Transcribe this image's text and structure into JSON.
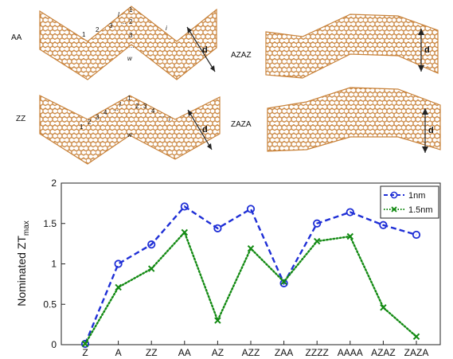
{
  "panels": [
    {
      "label": "AA"
    },
    {
      "label": "AZAZ"
    },
    {
      "label": "ZZ"
    },
    {
      "label": "ZAZA"
    }
  ],
  "annotations": {
    "numbers_aa": [
      "1",
      "2",
      "3",
      "...",
      "1",
      "2",
      "3",
      "...",
      "l",
      "i",
      "w"
    ],
    "numbers_zz": [
      "1",
      "2",
      "3",
      "4",
      "...",
      "1",
      "2",
      "3",
      "4",
      "...",
      "l",
      "i",
      "w"
    ],
    "width_marker": "d"
  },
  "colors": {
    "lattice": "#c8823a",
    "series_1nm": "#1f2fd6",
    "series_15nm": "#138a13"
  },
  "chart_data": {
    "type": "line",
    "categories": [
      "Z",
      "A",
      "ZZ",
      "AA",
      "AZ",
      "AZZ",
      "ZAA",
      "ZZZZ",
      "AAAA",
      "AZAZ",
      "ZAZA"
    ],
    "ylabel_main": "Nominated ZT",
    "ylabel_sub": "max",
    "ylim": [
      0,
      2
    ],
    "yticks": [
      "0",
      "0.5",
      "1",
      "1.5",
      "2"
    ],
    "legend_position": "top-right",
    "series": [
      {
        "name": "1nm",
        "style": "dashed",
        "marker": "circle",
        "values": [
          0.01,
          1.0,
          1.24,
          1.71,
          1.44,
          1.68,
          0.76,
          1.5,
          1.64,
          1.48,
          1.36
        ]
      },
      {
        "name": "1.5nm",
        "style": "dotted",
        "marker": "x",
        "values": [
          0.01,
          0.71,
          0.94,
          1.39,
          0.3,
          1.19,
          0.78,
          1.28,
          1.34,
          0.46,
          0.1
        ]
      }
    ]
  }
}
